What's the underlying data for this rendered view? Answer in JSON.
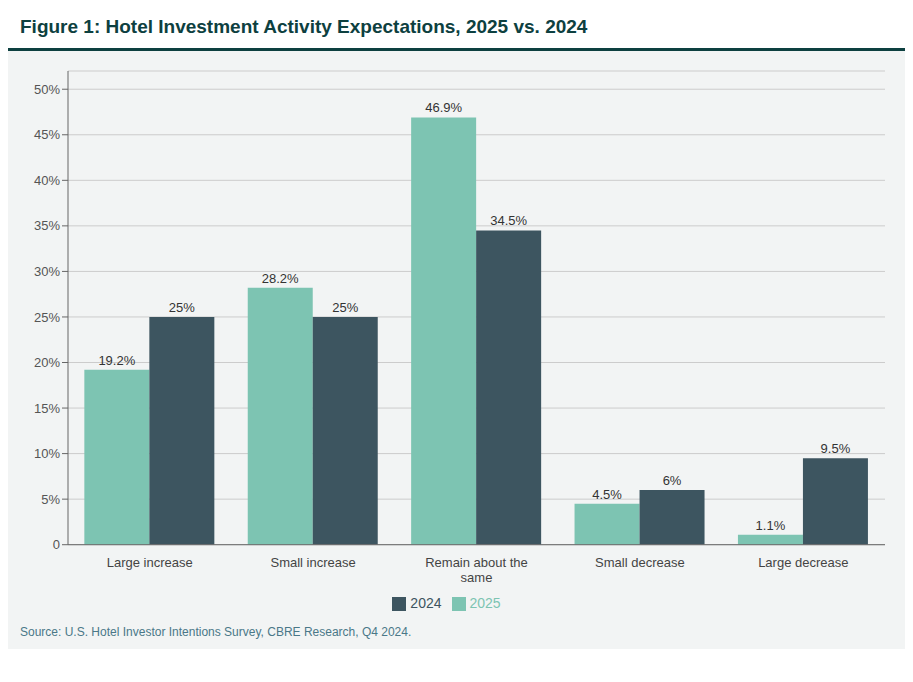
{
  "chart_data": {
    "type": "bar",
    "title": "Figure 1: Hotel Investment Activity Expectations, 2025 vs. 2024",
    "categories": [
      "Large increase",
      "Small increase",
      "Remain about the\nsame",
      "Small decrease",
      "Large decrease"
    ],
    "series": [
      {
        "name": "2025",
        "color": "#7dc4b2",
        "values": [
          19.2,
          28.2,
          46.9,
          4.5,
          1.1
        ],
        "value_labels": [
          "19.2%",
          "28.2%",
          "46.9%",
          "4.5%",
          "1.1%"
        ]
      },
      {
        "name": "2024",
        "color": "#3d5560",
        "values": [
          25.0,
          25.0,
          34.5,
          6.0,
          9.5
        ],
        "value_labels": [
          "25%",
          "25%",
          "34.5%",
          "6%",
          "9.5%"
        ]
      }
    ],
    "ylim": [
      0,
      52
    ],
    "yticks": [
      0,
      {
        "value": 5,
        "label": "5%"
      },
      {
        "value": 10,
        "label": "10%"
      },
      {
        "value": 15,
        "label": "15%"
      },
      {
        "value": 20,
        "label": "20%"
      },
      {
        "value": 25,
        "label": "25%"
      },
      {
        "value": 30,
        "label": "30%"
      },
      {
        "value": 35,
        "label": "35%"
      },
      {
        "value": 40,
        "label": "40%"
      },
      {
        "value": 45,
        "label": "45%"
      },
      {
        "value": 50,
        "label": "50%"
      }
    ],
    "grid": true,
    "legend": "bottom",
    "data_labels": true,
    "annotations": [
      "Source: U.S. Hotel Investor Intentions Survey, CBRE Research, Q4 2024."
    ]
  }
}
